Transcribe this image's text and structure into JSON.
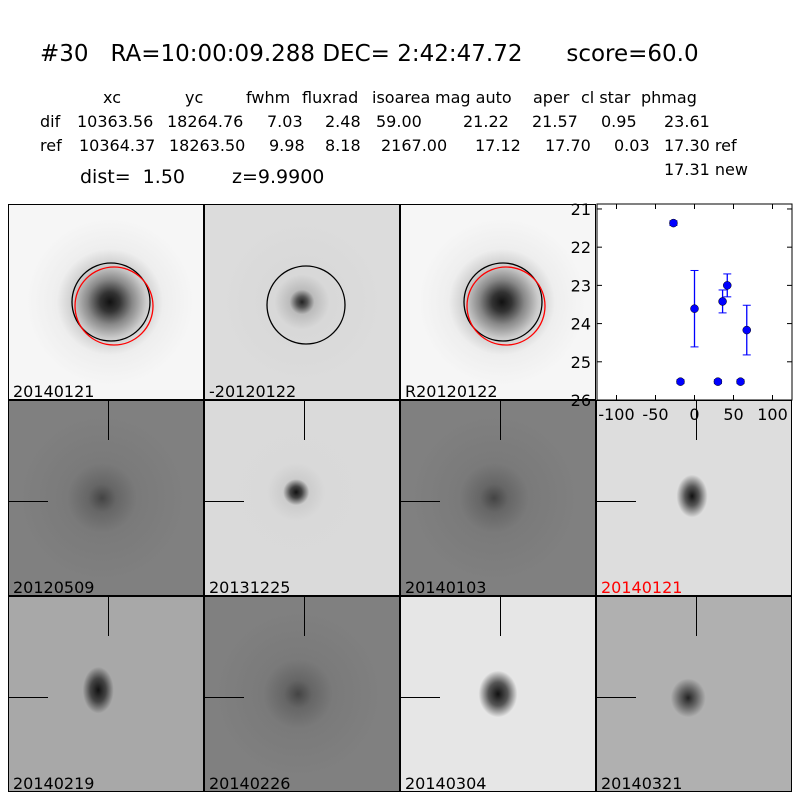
{
  "header": {
    "title": "#30   RA=10:00:09.288 DEC= 2:42:47.72      score=60.0"
  },
  "table": {
    "columns": [
      "xc",
      "yc",
      "fwhm",
      "fluxrad",
      "isoarea",
      "mag auto",
      "aper",
      "cl star",
      "phmag"
    ],
    "rows": [
      {
        "label": "dif",
        "values": [
          "10363.56",
          "18264.76",
          "7.03",
          "2.48",
          "59.00",
          "21.22",
          "21.57",
          "0.95",
          "23.61"
        ]
      },
      {
        "label": "ref",
        "values": [
          "10364.37",
          "18263.50",
          "9.98",
          "8.18",
          "2167.00",
          "17.12",
          "17.70",
          "0.03",
          "17.30 ref"
        ]
      }
    ],
    "phmag_new": "17.31 new",
    "dist": "dist=  1.50",
    "z": "z=9.9900"
  },
  "stamps": [
    {
      "label": "20140121",
      "color": "#000000",
      "type": "new"
    },
    {
      "label": "-20120122",
      "color": "#000000",
      "type": "diff"
    },
    {
      "label": "R20120122",
      "color": "#000000",
      "type": "ref"
    },
    {
      "label": "20120509",
      "color": "#000000",
      "type": "noise-dark"
    },
    {
      "label": "20131225",
      "color": "#000000",
      "type": "faint-dot"
    },
    {
      "label": "20140103",
      "color": "#000000",
      "type": "noise-dark"
    },
    {
      "label": "20140121",
      "color": "#ff0000",
      "type": "dot"
    },
    {
      "label": "20140219",
      "color": "#000000",
      "type": "dipole"
    },
    {
      "label": "20140226",
      "color": "#000000",
      "type": "noise-dark"
    },
    {
      "label": "20140304",
      "color": "#000000",
      "type": "bright-dot"
    },
    {
      "label": "20140321",
      "color": "#000000",
      "type": "dot-gray"
    }
  ],
  "circle_colors": {
    "detection": "#000000",
    "reference": "#ff0000"
  },
  "chart_data": {
    "type": "scatter",
    "title": "",
    "xlabel": "",
    "ylabel": "",
    "xlim": [
      -125,
      125
    ],
    "ylim": [
      26,
      21
    ],
    "y_inverted": true,
    "xticks": [
      "-100",
      "-50",
      "0",
      "50",
      "100"
    ],
    "xtick_values": [
      -100,
      -50,
      0,
      50,
      100
    ],
    "yticks": [
      "21",
      "22",
      "23",
      "24",
      "25",
      "26"
    ],
    "ytick_values": [
      21,
      22,
      23,
      24,
      25,
      26
    ],
    "marker_color": "#0000ff",
    "points": [
      {
        "x": -27,
        "y": 21.37,
        "err": 0.06
      },
      {
        "x": -18,
        "y": 25.52,
        "err": 0.05
      },
      {
        "x": 0,
        "y": 23.61,
        "err": 1.0
      },
      {
        "x": 30,
        "y": 25.52,
        "err": 0.05
      },
      {
        "x": 36,
        "y": 23.42,
        "err": 0.3
      },
      {
        "x": 42,
        "y": 23.0,
        "err": 0.3
      },
      {
        "x": 59,
        "y": 25.52,
        "err": 0.05
      },
      {
        "x": 67,
        "y": 24.17,
        "err": 0.65
      }
    ]
  }
}
